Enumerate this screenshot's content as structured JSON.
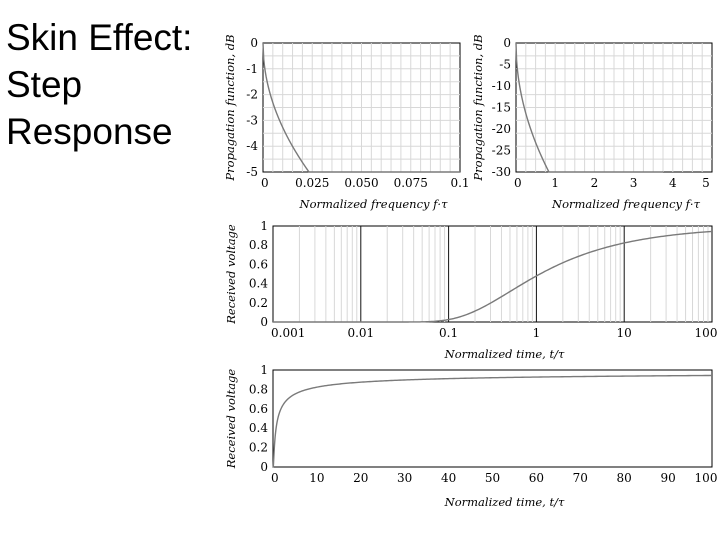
{
  "slide": {
    "title_lines": [
      "Skin Effect:",
      "Step",
      "Response"
    ]
  },
  "colors": {
    "curve": "#7a7a7a",
    "grid": "#d8d8d8",
    "frame": "#000000"
  },
  "chart_data": [
    {
      "id": "prop-zoom",
      "type": "line",
      "xscale": "linear",
      "xlim": [
        0,
        0.1
      ],
      "ylim": [
        -5,
        0
      ],
      "xticks": [
        0,
        0.025,
        0.05,
        0.075,
        0.1
      ],
      "xtick_labels": [
        "0",
        "0.025",
        "0.050",
        "0.075",
        "0.1"
      ],
      "yticks": [
        0,
        -1,
        -2,
        -3,
        -4,
        -5
      ],
      "ytick_labels": [
        "0",
        "-1",
        "-2",
        "-3",
        "-4",
        "-5"
      ],
      "xlabel": "Normalized frequency f·τ",
      "ylabel": "Propagation function, dB",
      "grid": "minor",
      "formula": "skin_db",
      "series": [
        {
          "name": "propagation function",
          "x_range": [
            0,
            0.1
          ]
        }
      ]
    },
    {
      "id": "prop-wide",
      "type": "line",
      "xscale": "linear",
      "xlim": [
        0,
        5
      ],
      "ylim": [
        -30,
        0
      ],
      "xticks": [
        0,
        1,
        2,
        3,
        4,
        5
      ],
      "xtick_labels": [
        "0",
        "1",
        "2",
        "3",
        "4",
        "5"
      ],
      "yticks": [
        0,
        -5,
        -10,
        -15,
        -20,
        -25,
        -30
      ],
      "ytick_labels": [
        "0",
        "-5",
        "-10",
        "-15",
        "-20",
        "-25",
        "-30"
      ],
      "xlabel": "Normalized frequency f·τ",
      "ylabel": "Propagation function, dB",
      "grid": "minor",
      "formula": "skin_db",
      "series": [
        {
          "name": "propagation function",
          "x_range": [
            0,
            3.75
          ]
        }
      ]
    },
    {
      "id": "step-log",
      "type": "line",
      "xscale": "log",
      "xlim": [
        0.001,
        100
      ],
      "ylim": [
        0,
        1
      ],
      "xticks": [
        0.001,
        0.01,
        0.1,
        1,
        10,
        100
      ],
      "xtick_labels": [
        "0.001",
        "0.01",
        "0.1",
        "1",
        "10",
        "100"
      ],
      "yticks": [
        1,
        0.8,
        0.6,
        0.4,
        0.2,
        0
      ],
      "ytick_labels": [
        "1",
        "0.8",
        "0.6",
        "0.4",
        "0.2",
        "0"
      ],
      "xlabel": "Normalized time, t/τ",
      "ylabel": "Received voltage",
      "grid": "log",
      "formula": "step_erfc",
      "series": [
        {
          "name": "received voltage",
          "x_range": [
            0.001,
            100
          ]
        }
      ]
    },
    {
      "id": "step-lin",
      "type": "line",
      "xscale": "linear",
      "xlim": [
        0,
        100
      ],
      "ylim": [
        0,
        1
      ],
      "xticks": [
        0,
        10,
        20,
        30,
        40,
        50,
        60,
        70,
        80,
        90,
        100
      ],
      "xtick_labels": [
        "0",
        "10",
        "20",
        "30",
        "40",
        "50",
        "60",
        "70",
        "80",
        "90",
        "100"
      ],
      "yticks": [
        1,
        0.8,
        0.6,
        0.4,
        0.2,
        0
      ],
      "ytick_labels": [
        "1",
        "0.8",
        "0.6",
        "0.4",
        "0.2",
        "0"
      ],
      "xlabel": "Normalized time, t/τ",
      "ylabel": "Received voltage",
      "grid": "none",
      "formula": "step_erfc",
      "series": [
        {
          "name": "received voltage",
          "x_range": [
            0,
            100
          ]
        }
      ]
    }
  ]
}
